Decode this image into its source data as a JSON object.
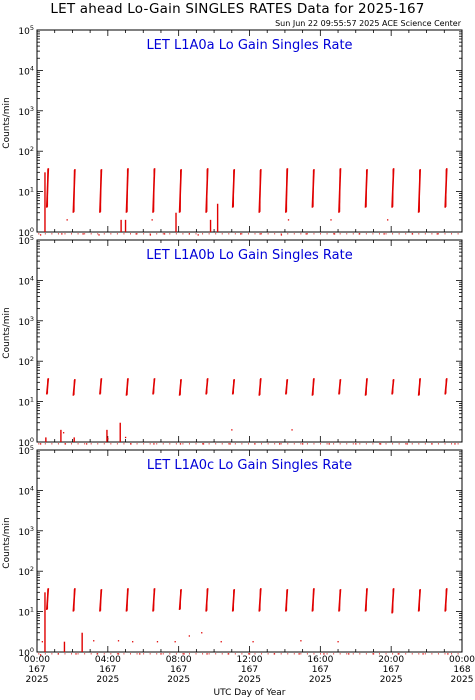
{
  "title": "LET ahead Lo-Gain SINGLES RATES Data for 2025-167",
  "timestamp": "Sun Jun 22 09:55:57 2025 ACE Science Center",
  "colors": {
    "data": "#e00000",
    "panel_title": "#0000d8",
    "frame": "#000000"
  },
  "chart_data": [
    {
      "type": "scatter",
      "title": "LET L1A0a Lo Gain Singles Rate",
      "ylabel": "Counts/min",
      "yscale": "log",
      "ylim": [
        1,
        100000
      ],
      "xlim": [
        0,
        24
      ],
      "segments": [
        [
          0.55,
          4,
          38
        ],
        [
          2.05,
          3,
          36
        ],
        [
          3.55,
          3,
          36
        ],
        [
          5.05,
          3,
          38
        ],
        [
          6.55,
          3,
          38
        ],
        [
          8.05,
          3,
          36
        ],
        [
          9.55,
          3,
          38
        ],
        [
          11.05,
          4,
          36
        ],
        [
          12.55,
          3,
          36
        ],
        [
          14.05,
          3,
          38
        ],
        [
          15.55,
          4,
          36
        ],
        [
          17.05,
          3,
          38
        ],
        [
          18.55,
          4,
          36
        ],
        [
          20.05,
          4,
          38
        ],
        [
          21.55,
          3,
          36
        ],
        [
          23.05,
          4,
          38
        ]
      ],
      "spikes": [
        [
          0.45,
          1,
          30
        ],
        [
          5.0,
          1,
          2
        ],
        [
          4.75,
          1,
          2
        ],
        [
          7.85,
          1,
          3
        ],
        [
          9.8,
          1,
          2
        ],
        [
          10.2,
          1,
          5
        ]
      ],
      "dots": [
        [
          0.2,
          0.85
        ],
        [
          1.4,
          0.9
        ],
        [
          2.6,
          0.9
        ],
        [
          3.5,
          0.85
        ],
        [
          5.6,
          0.9
        ],
        [
          6.4,
          0.85
        ],
        [
          7.2,
          0.9
        ],
        [
          8.6,
          0.9
        ],
        [
          9.1,
          0.85
        ],
        [
          11.5,
          0.9
        ],
        [
          12.6,
          0.9
        ],
        [
          13.8,
          0.85
        ],
        [
          15.2,
          0.9
        ],
        [
          16.8,
          0.9
        ],
        [
          18.2,
          0.9
        ],
        [
          19.6,
          0.9
        ],
        [
          21.2,
          0.9
        ],
        [
          22.6,
          0.9
        ],
        [
          1.7,
          2
        ],
        [
          6.5,
          2
        ],
        [
          14.2,
          2
        ],
        [
          16.6,
          2
        ],
        [
          19.8,
          2
        ]
      ]
    },
    {
      "type": "scatter",
      "title": "LET L1A0b Lo Gain Singles Rate",
      "ylabel": "Counts/min",
      "yscale": "log",
      "ylim": [
        1,
        100000
      ],
      "xlim": [
        0,
        24
      ],
      "segments": [
        [
          0.55,
          15,
          38
        ],
        [
          2.05,
          14,
          36
        ],
        [
          3.55,
          15,
          38
        ],
        [
          5.05,
          14,
          38
        ],
        [
          6.55,
          15,
          38
        ],
        [
          8.05,
          14,
          36
        ],
        [
          9.55,
          15,
          38
        ],
        [
          11.05,
          15,
          36
        ],
        [
          12.55,
          14,
          38
        ],
        [
          14.05,
          15,
          36
        ],
        [
          15.55,
          14,
          38
        ],
        [
          17.05,
          15,
          36
        ],
        [
          18.55,
          14,
          38
        ],
        [
          20.05,
          15,
          36
        ],
        [
          21.55,
          14,
          38
        ],
        [
          23.05,
          15,
          38
        ]
      ],
      "spikes": [
        [
          0.5,
          1,
          1.3
        ],
        [
          1.35,
          1,
          2
        ],
        [
          3.95,
          1,
          2
        ],
        [
          4.7,
          1,
          3
        ],
        [
          2.1,
          1,
          1.3
        ]
      ],
      "dots": [
        [
          0.2,
          0.9
        ],
        [
          1.6,
          0.9
        ],
        [
          2.8,
          0.9
        ],
        [
          4.0,
          1.2
        ],
        [
          5.3,
          0.9
        ],
        [
          6.6,
          0.9
        ],
        [
          8.1,
          0.9
        ],
        [
          9.4,
          0.9
        ],
        [
          10.9,
          0.9
        ],
        [
          12.3,
          0.9
        ],
        [
          13.7,
          0.9
        ],
        [
          15.0,
          0.9
        ],
        [
          16.5,
          0.9
        ],
        [
          18.0,
          0.9
        ],
        [
          19.4,
          0.9
        ],
        [
          20.9,
          0.9
        ],
        [
          22.3,
          0.9
        ],
        [
          23.6,
          0.9
        ],
        [
          5.0,
          1.3
        ],
        [
          11.0,
          2
        ],
        [
          14.4,
          2
        ],
        [
          1.5,
          1.7
        ]
      ]
    },
    {
      "type": "scatter",
      "title": "LET L1A0c Lo Gain Singles Rate",
      "ylabel": "Counts/min",
      "yscale": "log",
      "ylim": [
        1,
        100000
      ],
      "xlim": [
        0,
        24
      ],
      "segments": [
        [
          0.55,
          11,
          38
        ],
        [
          2.05,
          10,
          38
        ],
        [
          3.55,
          10,
          36
        ],
        [
          5.05,
          10,
          38
        ],
        [
          6.55,
          10,
          38
        ],
        [
          8.05,
          11,
          36
        ],
        [
          9.55,
          10,
          38
        ],
        [
          11.05,
          10,
          36
        ],
        [
          12.55,
          10,
          38
        ],
        [
          14.05,
          10,
          36
        ],
        [
          15.55,
          10,
          38
        ],
        [
          17.05,
          10,
          36
        ],
        [
          18.55,
          10,
          38
        ],
        [
          20.05,
          9,
          38
        ],
        [
          21.55,
          10,
          36
        ],
        [
          23.05,
          10,
          38
        ]
      ],
      "spikes": [
        [
          0.45,
          1,
          30
        ],
        [
          1.55,
          1,
          1.8
        ],
        [
          2.55,
          1,
          3
        ]
      ],
      "dots": [
        [
          0.2,
          0.85
        ],
        [
          1.2,
          0.9
        ],
        [
          2.2,
          0.9
        ],
        [
          3.4,
          0.9
        ],
        [
          4.6,
          0.9
        ],
        [
          5.8,
          0.9
        ],
        [
          7.0,
          0.9
        ],
        [
          8.3,
          0.9
        ],
        [
          9.6,
          0.9
        ],
        [
          10.8,
          0.9
        ],
        [
          12.0,
          0.9
        ],
        [
          13.4,
          0.9
        ],
        [
          14.8,
          0.9
        ],
        [
          16.2,
          0.9
        ],
        [
          17.6,
          0.9
        ],
        [
          19.0,
          0.9
        ],
        [
          20.4,
          0.9
        ],
        [
          21.8,
          0.9
        ],
        [
          23.2,
          0.9
        ],
        [
          0.3,
          1.8
        ],
        [
          3.2,
          1.9
        ],
        [
          4.6,
          1.9
        ],
        [
          5.4,
          1.8
        ],
        [
          6.8,
          1.8
        ],
        [
          7.8,
          1.8
        ],
        [
          8.6,
          2.5
        ],
        [
          9.3,
          3
        ],
        [
          10.4,
          1.8
        ],
        [
          12.2,
          1.8
        ],
        [
          14.9,
          1.9
        ],
        [
          17.0,
          1.8
        ]
      ]
    }
  ],
  "ytick_labels": [
    "10^0",
    "10^1",
    "10^2",
    "10^3",
    "10^4",
    "10^5"
  ],
  "x_axis": {
    "xlabel": "UTC Day of Year",
    "ticks": [
      {
        "pos": 0,
        "time": "00:00",
        "doy": "167",
        "year": "2025"
      },
      {
        "pos": 4,
        "time": "04:00",
        "doy": "167",
        "year": "2025"
      },
      {
        "pos": 8,
        "time": "08:00",
        "doy": "167",
        "year": "2025"
      },
      {
        "pos": 12,
        "time": "12:00",
        "doy": "167",
        "year": "2025"
      },
      {
        "pos": 16,
        "time": "16:00",
        "doy": "167",
        "year": "2025"
      },
      {
        "pos": 20,
        "time": "20:00",
        "doy": "167",
        "year": "2025"
      },
      {
        "pos": 24,
        "time": "00:00",
        "doy": "168",
        "year": "2025"
      }
    ]
  }
}
